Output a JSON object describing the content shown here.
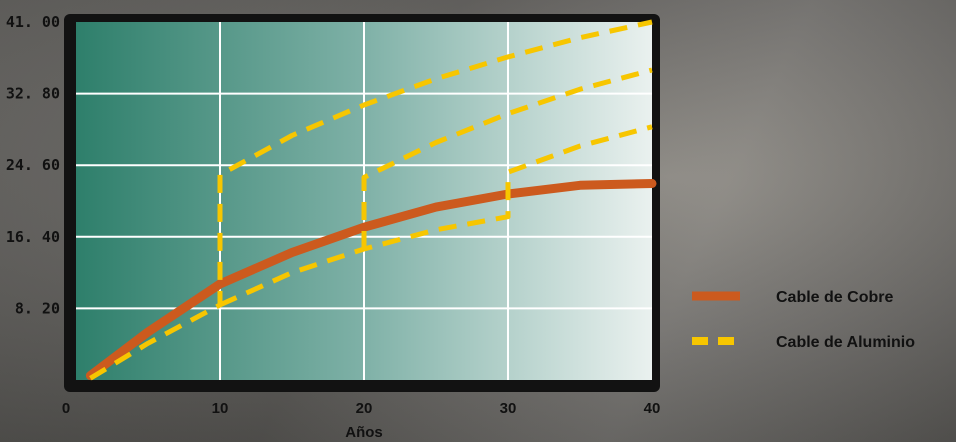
{
  "chart_data": {
    "type": "line",
    "xlabel": "Años",
    "ylabel": "",
    "xlim": [
      0,
      40
    ],
    "ylim": [
      0,
      41
    ],
    "x_ticks": [
      "0",
      "10",
      "20",
      "30",
      "40"
    ],
    "x_tick_values": [
      0,
      10,
      20,
      30,
      40
    ],
    "y_ticks": [
      "8. 20",
      "16. 40",
      "24. 60",
      "32. 80",
      "41. 00"
    ],
    "y_tick_values": [
      8.2,
      16.4,
      24.6,
      32.8,
      41.0
    ],
    "grid": true,
    "legend_position": "right",
    "series": [
      {
        "name": "Cable de Cobre",
        "style": "solid",
        "color": "#cc5a1e",
        "x": [
          1,
          5,
          10,
          15,
          20,
          25,
          30,
          35,
          40
        ],
        "y": [
          0.5,
          5.5,
          11.0,
          14.6,
          17.5,
          19.8,
          21.3,
          22.3,
          22.5
        ]
      },
      {
        "name": "Cable de Aluminio",
        "style": "dashed",
        "color": "#f7c600",
        "segments": [
          {
            "x": [
              1,
              5,
              10,
              10,
              15,
              20,
              25,
              30,
              35,
              40
            ],
            "y": [
              0.2,
              4.2,
              8.6,
              23.5,
              28.0,
              31.5,
              34.5,
              37.0,
              39.2,
              41.0
            ]
          },
          {
            "x": [
              20,
              20,
              25,
              30,
              35,
              40
            ],
            "y": [
              15.0,
              23.2,
              27.2,
              30.5,
              33.3,
              35.5
            ]
          },
          {
            "x": [
              10,
              15,
              20,
              25,
              30,
              30,
              35,
              40
            ],
            "y": [
              8.6,
              12.3,
              15.0,
              17.2,
              18.7,
              23.8,
              26.8,
              29.0
            ]
          }
        ]
      }
    ]
  }
}
